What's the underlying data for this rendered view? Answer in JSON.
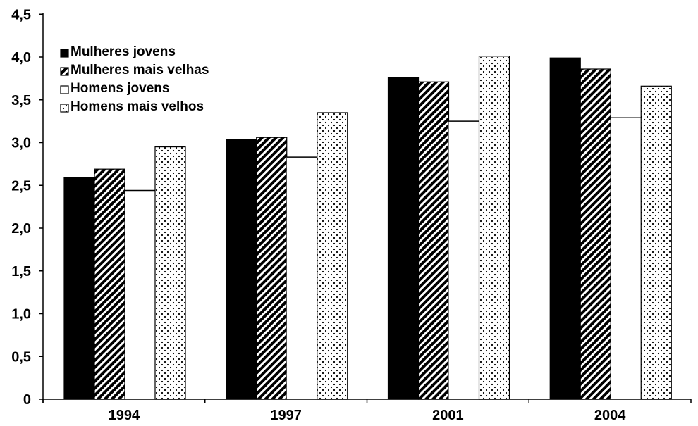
{
  "chart_data": {
    "type": "bar",
    "categories": [
      "1994",
      "1997",
      "2001",
      "2004"
    ],
    "series": [
      {
        "name": "Mulheres jovens",
        "values": [
          2.59,
          3.04,
          3.76,
          3.99
        ],
        "fill": "solid",
        "color": "#000000"
      },
      {
        "name": "Mulheres mais velhas",
        "values": [
          2.69,
          3.06,
          3.71,
          3.86
        ],
        "fill": "diagonal-stripes",
        "color": "#000000"
      },
      {
        "name": "Homens jovens",
        "values": [
          2.44,
          2.83,
          3.25,
          3.29
        ],
        "fill": "white",
        "color": "#ffffff"
      },
      {
        "name": "Homens mais velhos",
        "values": [
          2.95,
          3.35,
          4.01,
          3.66
        ],
        "fill": "dots",
        "color": "#000000"
      }
    ],
    "yticks": [
      "0",
      "0,5",
      "1,0",
      "1,5",
      "2,0",
      "2,5",
      "3,0",
      "3,5",
      "4,0",
      "4,5"
    ],
    "ylim": [
      0,
      4.5
    ],
    "title": "",
    "xlabel": "",
    "ylabel": "",
    "grid": false,
    "legend_position": "top-left"
  }
}
